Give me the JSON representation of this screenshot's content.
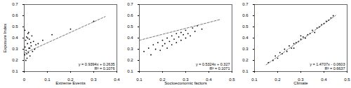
{
  "chart_data": [
    {
      "type": "scatter",
      "x_label": "Extreme Events",
      "y_label": "Exposure Index",
      "color": "#000000",
      "marker": "circle",
      "x": [
        0.002,
        0.004,
        0.006,
        0.008,
        0.01,
        0.012,
        0.014,
        0.016,
        0.018,
        0.02,
        0.022,
        0.025,
        0.028,
        0.03,
        0.033,
        0.036,
        0.04,
        0.045,
        0.05,
        0.003,
        0.007,
        0.011,
        0.015,
        0.019,
        0.024,
        0.06,
        0.08,
        0.12,
        0.2,
        0.3
      ],
      "values": [
        0.25,
        0.32,
        0.38,
        0.29,
        0.41,
        0.22,
        0.35,
        0.44,
        0.27,
        0.31,
        0.39,
        0.24,
        0.36,
        0.33,
        0.42,
        0.28,
        0.37,
        0.3,
        0.34,
        0.47,
        0.2,
        0.26,
        0.4,
        0.45,
        0.31,
        0.35,
        0.38,
        0.43,
        0.48,
        0.55
      ],
      "trendline": {
        "x": [
          0,
          0.35
        ],
        "values": [
          0.2635,
          0.5923
        ],
        "color": "#555555",
        "line_style": "dashed"
      },
      "annotations": [
        "y = 0.9394x + 0.2635",
        "R² = 0.1076"
      ],
      "xlim": [
        0,
        0.4
      ],
      "xticks": [
        0,
        0.1,
        0.2,
        0.3,
        0.4
      ],
      "ylim": [
        0.1,
        0.7
      ],
      "yticks": [
        0.1,
        0.2,
        0.3,
        0.4,
        0.5,
        0.6,
        0.7
      ]
    },
    {
      "type": "scatter",
      "x_label": "Socioeconomic factors",
      "color": "#000000",
      "marker": "circle",
      "x": [
        0.12,
        0.14,
        0.15,
        0.16,
        0.17,
        0.18,
        0.19,
        0.2,
        0.2,
        0.21,
        0.22,
        0.22,
        0.23,
        0.24,
        0.24,
        0.25,
        0.26,
        0.26,
        0.27,
        0.28,
        0.28,
        0.29,
        0.3,
        0.3,
        0.31,
        0.32,
        0.33,
        0.34,
        0.35,
        0.37
      ],
      "values": [
        0.28,
        0.31,
        0.25,
        0.34,
        0.3,
        0.36,
        0.29,
        0.38,
        0.33,
        0.35,
        0.4,
        0.31,
        0.37,
        0.42,
        0.34,
        0.39,
        0.44,
        0.36,
        0.41,
        0.38,
        0.45,
        0.43,
        0.4,
        0.47,
        0.44,
        0.42,
        0.49,
        0.46,
        0.51,
        0.48
      ],
      "trendline": {
        "x": [
          0.1,
          0.45
        ],
        "values": [
          0.3802,
          0.5666
        ],
        "color": "#555555",
        "line_style": "dashed"
      },
      "annotations": [
        "y = 0.5324x + 0.327",
        "R² = 0.1071"
      ],
      "xlim": [
        0.1,
        0.5
      ],
      "xticks": [
        0.1,
        0.2,
        0.3,
        0.4,
        0.5
      ],
      "ylim": [
        0.1,
        0.7
      ],
      "yticks": [
        0.1,
        0.2,
        0.3,
        0.4,
        0.5,
        0.6,
        0.7
      ]
    },
    {
      "type": "scatter",
      "x_label": "Climate",
      "color": "#000000",
      "marker": "circle",
      "x": [
        0.16,
        0.18,
        0.19,
        0.2,
        0.21,
        0.22,
        0.23,
        0.24,
        0.25,
        0.26,
        0.27,
        0.28,
        0.29,
        0.3,
        0.31,
        0.32,
        0.33,
        0.34,
        0.35,
        0.36,
        0.37,
        0.38,
        0.39,
        0.4,
        0.41,
        0.42,
        0.43,
        0.44,
        0.3,
        0.27
      ],
      "values": [
        0.18,
        0.2,
        0.24,
        0.22,
        0.27,
        0.26,
        0.3,
        0.28,
        0.33,
        0.31,
        0.35,
        0.36,
        0.37,
        0.39,
        0.41,
        0.4,
        0.43,
        0.44,
        0.47,
        0.45,
        0.49,
        0.5,
        0.52,
        0.53,
        0.55,
        0.56,
        0.58,
        0.6,
        0.42,
        0.31
      ],
      "trendline": {
        "x": [
          0.15,
          0.45
        ],
        "values": [
          0.1603,
          0.6015
        ],
        "color": "#555555",
        "line_style": "dashed"
      },
      "annotations": [
        "y = 1.4707x - 0.0603",
        "R² = 0.6637"
      ],
      "xlim": [
        0.1,
        0.5
      ],
      "xticks": [
        0.1,
        0.2,
        0.3,
        0.4,
        0.5
      ],
      "ylim": [
        0.1,
        0.7
      ],
      "yticks": [
        0.1,
        0.2,
        0.3,
        0.4,
        0.5,
        0.6,
        0.7
      ]
    }
  ]
}
